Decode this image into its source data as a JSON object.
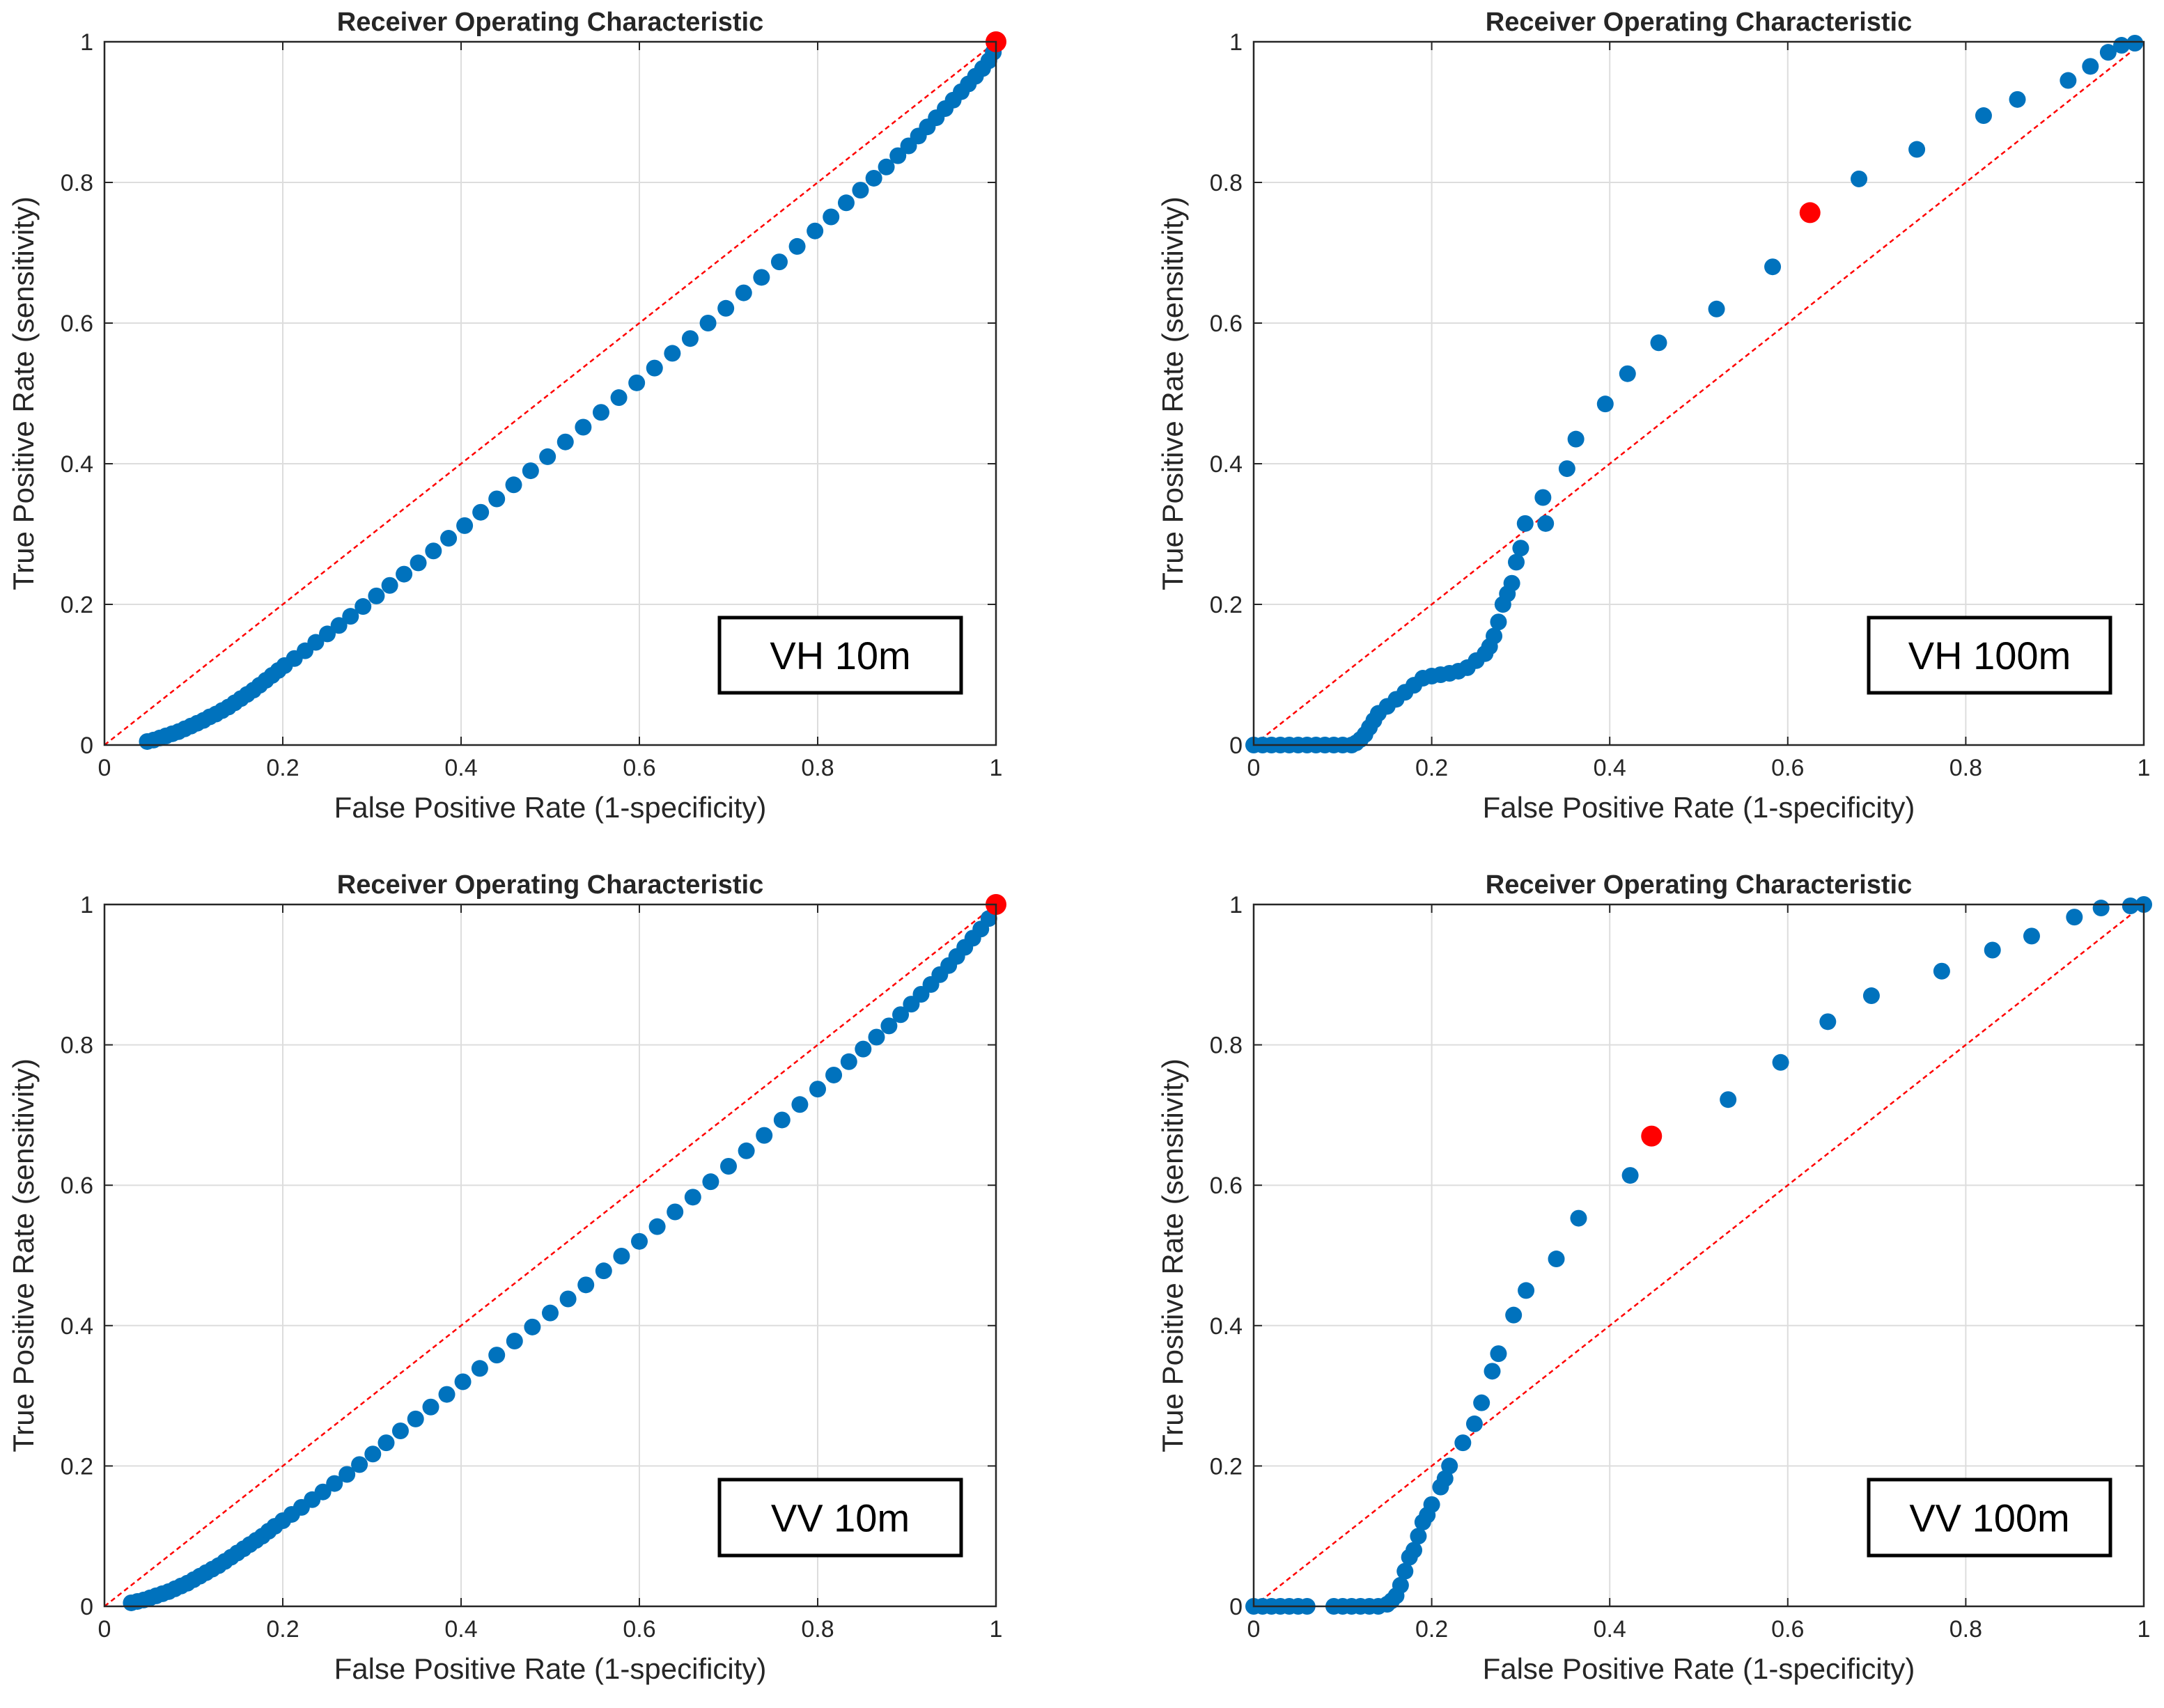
{
  "colors": {
    "points": "#0072BD",
    "optimal_point": "#FF0000",
    "reference_line": "#FF0000",
    "grid": "#DDDDDD",
    "axes": "#262626"
  },
  "chart_data": [
    {
      "id": "vh10",
      "type": "scatter",
      "title": "Receiver Operating Characteristic",
      "xlabel": "False Positive Rate (1-specificity)",
      "ylabel": "True Positive Rate (sensitivity)",
      "xlim": [
        0,
        1
      ],
      "ylim": [
        0,
        1
      ],
      "xticks": [
        "0",
        "0.2",
        "0.4",
        "0.6",
        "0.8",
        "1"
      ],
      "yticks": [
        "0",
        "0.2",
        "0.4",
        "0.6",
        "0.8",
        "1"
      ],
      "grid": true,
      "annotation": "VH 10m",
      "reference_line": {
        "from": [
          0,
          0
        ],
        "to": [
          1,
          1
        ],
        "style": "dashed"
      },
      "optimal_point": {
        "x": 1.0,
        "y": 1.0
      },
      "series": [
        {
          "name": "ROC points",
          "x": [
            0.048,
            0.055,
            0.062,
            0.069,
            0.076,
            0.083,
            0.09,
            0.097,
            0.104,
            0.111,
            0.118,
            0.125,
            0.132,
            0.139,
            0.146,
            0.153,
            0.16,
            0.167,
            0.174,
            0.181,
            0.188,
            0.195,
            0.202,
            0.213,
            0.225,
            0.237,
            0.25,
            0.263,
            0.276,
            0.29,
            0.305,
            0.32,
            0.336,
            0.352,
            0.369,
            0.386,
            0.404,
            0.422,
            0.44,
            0.459,
            0.478,
            0.497,
            0.517,
            0.537,
            0.557,
            0.577,
            0.597,
            0.617,
            0.637,
            0.657,
            0.677,
            0.697,
            0.717,
            0.737,
            0.757,
            0.777,
            0.797,
            0.815,
            0.832,
            0.848,
            0.863,
            0.877,
            0.89,
            0.902,
            0.913,
            0.923,
            0.933,
            0.943,
            0.952,
            0.961,
            0.969,
            0.977,
            0.985,
            0.992,
            0.997
          ],
          "y": [
            0.005,
            0.007,
            0.01,
            0.013,
            0.016,
            0.019,
            0.023,
            0.027,
            0.031,
            0.035,
            0.04,
            0.044,
            0.049,
            0.054,
            0.06,
            0.066,
            0.072,
            0.078,
            0.085,
            0.092,
            0.099,
            0.106,
            0.113,
            0.123,
            0.134,
            0.146,
            0.158,
            0.17,
            0.183,
            0.197,
            0.212,
            0.227,
            0.243,
            0.259,
            0.276,
            0.294,
            0.312,
            0.331,
            0.35,
            0.37,
            0.39,
            0.41,
            0.431,
            0.452,
            0.473,
            0.494,
            0.515,
            0.536,
            0.557,
            0.578,
            0.6,
            0.621,
            0.643,
            0.665,
            0.687,
            0.709,
            0.731,
            0.751,
            0.771,
            0.789,
            0.806,
            0.822,
            0.838,
            0.852,
            0.866,
            0.879,
            0.892,
            0.905,
            0.917,
            0.929,
            0.94,
            0.951,
            0.962,
            0.973,
            0.985
          ]
        }
      ]
    },
    {
      "id": "vh100",
      "type": "scatter",
      "title": "Receiver Operating Characteristic",
      "xlabel": "False Positive Rate (1-specificity)",
      "ylabel": "True Positive Rate (sensitivity)",
      "xlim": [
        0,
        1
      ],
      "ylim": [
        0,
        1
      ],
      "xticks": [
        "0",
        "0.2",
        "0.4",
        "0.6",
        "0.8",
        "1"
      ],
      "yticks": [
        "0",
        "0.2",
        "0.4",
        "0.6",
        "0.8",
        "1"
      ],
      "grid": true,
      "annotation": "VH 100m",
      "reference_line": {
        "from": [
          0,
          0
        ],
        "to": [
          1,
          1
        ],
        "style": "dashed"
      },
      "optimal_point": {
        "x": 0.625,
        "y": 0.757
      },
      "series": [
        {
          "name": "ROC points",
          "x": [
            0.0,
            0.01,
            0.02,
            0.03,
            0.04,
            0.05,
            0.06,
            0.07,
            0.08,
            0.09,
            0.1,
            0.11,
            0.115,
            0.12,
            0.125,
            0.13,
            0.135,
            0.14,
            0.15,
            0.16,
            0.17,
            0.18,
            0.19,
            0.2,
            0.21,
            0.22,
            0.23,
            0.24,
            0.25,
            0.26,
            0.265,
            0.27,
            0.275,
            0.28,
            0.285,
            0.29,
            0.295,
            0.3,
            0.305,
            0.325,
            0.328,
            0.352,
            0.362,
            0.395,
            0.42,
            0.455,
            0.52,
            0.583,
            0.68,
            0.745,
            0.82,
            0.858,
            0.915,
            0.94,
            0.96,
            0.975,
            0.99
          ],
          "y": [
            0.0,
            0.0,
            0.0,
            0.0,
            0.0,
            0.0,
            0.0,
            0.0,
            0.0,
            0.0,
            0.0,
            0.0,
            0.003,
            0.008,
            0.015,
            0.025,
            0.035,
            0.045,
            0.055,
            0.065,
            0.075,
            0.085,
            0.095,
            0.098,
            0.1,
            0.102,
            0.105,
            0.11,
            0.12,
            0.13,
            0.14,
            0.155,
            0.175,
            0.2,
            0.215,
            0.23,
            0.26,
            0.28,
            0.315,
            0.352,
            0.315,
            0.393,
            0.435,
            0.485,
            0.528,
            0.572,
            0.62,
            0.68,
            0.805,
            0.847,
            0.895,
            0.918,
            0.945,
            0.965,
            0.985,
            0.995,
            0.998
          ]
        }
      ]
    },
    {
      "id": "vv10",
      "type": "scatter",
      "title": "Receiver Operating Characteristic",
      "xlabel": "False Positive Rate (1-specificity)",
      "ylabel": "True Positive Rate (sensitivity)",
      "xlim": [
        0,
        1
      ],
      "ylim": [
        0,
        1
      ],
      "xticks": [
        "0",
        "0.2",
        "0.4",
        "0.6",
        "0.8",
        "1"
      ],
      "yticks": [
        "0",
        "0.2",
        "0.4",
        "0.6",
        "0.8",
        "1"
      ],
      "grid": true,
      "annotation": "VV 10m",
      "reference_line": {
        "from": [
          0,
          0
        ],
        "to": [
          1,
          1
        ],
        "style": "dashed"
      },
      "optimal_point": {
        "x": 1.0,
        "y": 1.0
      },
      "series": [
        {
          "name": "ROC points",
          "x": [
            0.03,
            0.037,
            0.044,
            0.051,
            0.058,
            0.065,
            0.072,
            0.079,
            0.086,
            0.093,
            0.1,
            0.107,
            0.114,
            0.121,
            0.128,
            0.135,
            0.142,
            0.149,
            0.156,
            0.163,
            0.17,
            0.177,
            0.184,
            0.191,
            0.2,
            0.21,
            0.221,
            0.233,
            0.245,
            0.258,
            0.272,
            0.286,
            0.301,
            0.316,
            0.332,
            0.349,
            0.366,
            0.384,
            0.402,
            0.421,
            0.44,
            0.46,
            0.48,
            0.5,
            0.52,
            0.54,
            0.56,
            0.58,
            0.6,
            0.62,
            0.64,
            0.66,
            0.68,
            0.7,
            0.72,
            0.74,
            0.76,
            0.78,
            0.8,
            0.818,
            0.835,
            0.851,
            0.866,
            0.88,
            0.893,
            0.905,
            0.916,
            0.927,
            0.937,
            0.947,
            0.956,
            0.965,
            0.974,
            0.983,
            0.992
          ],
          "y": [
            0.005,
            0.007,
            0.009,
            0.012,
            0.015,
            0.018,
            0.021,
            0.025,
            0.029,
            0.033,
            0.038,
            0.043,
            0.048,
            0.053,
            0.058,
            0.064,
            0.07,
            0.076,
            0.082,
            0.088,
            0.094,
            0.1,
            0.107,
            0.114,
            0.122,
            0.131,
            0.141,
            0.152,
            0.163,
            0.175,
            0.188,
            0.202,
            0.217,
            0.233,
            0.25,
            0.267,
            0.284,
            0.302,
            0.32,
            0.339,
            0.358,
            0.378,
            0.398,
            0.418,
            0.438,
            0.458,
            0.478,
            0.499,
            0.52,
            0.541,
            0.562,
            0.583,
            0.605,
            0.627,
            0.649,
            0.671,
            0.693,
            0.715,
            0.737,
            0.757,
            0.776,
            0.794,
            0.811,
            0.827,
            0.843,
            0.858,
            0.872,
            0.886,
            0.9,
            0.913,
            0.926,
            0.939,
            0.952,
            0.965,
            0.98
          ]
        }
      ]
    },
    {
      "id": "vv100",
      "type": "scatter",
      "title": "Receiver Operating Characteristic",
      "xlabel": "False Positive Rate (1-specificity)",
      "ylabel": "True Positive Rate (sensitivity)",
      "xlim": [
        0,
        1
      ],
      "ylim": [
        0,
        1
      ],
      "xticks": [
        "0",
        "0.2",
        "0.4",
        "0.6",
        "0.8",
        "1"
      ],
      "yticks": [
        "0",
        "0.2",
        "0.4",
        "0.6",
        "0.8",
        "1"
      ],
      "grid": true,
      "annotation": "VV 100m",
      "reference_line": {
        "from": [
          0,
          0
        ],
        "to": [
          1,
          1
        ],
        "style": "dashed"
      },
      "optimal_point": {
        "x": 0.447,
        "y": 0.67
      },
      "series": [
        {
          "name": "ROC points",
          "x": [
            0.0,
            0.01,
            0.02,
            0.03,
            0.04,
            0.05,
            0.06,
            0.09,
            0.1,
            0.11,
            0.12,
            0.13,
            0.14,
            0.15,
            0.155,
            0.16,
            0.165,
            0.17,
            0.175,
            0.18,
            0.185,
            0.19,
            0.195,
            0.2,
            0.21,
            0.215,
            0.22,
            0.235,
            0.248,
            0.256,
            0.268,
            0.275,
            0.292,
            0.306,
            0.34,
            0.365,
            0.423,
            0.533,
            0.592,
            0.645,
            0.694,
            0.773,
            0.83,
            0.874,
            0.922,
            0.952,
            0.985,
            1.0
          ],
          "y": [
            0.0,
            0.0,
            0.0,
            0.0,
            0.0,
            0.0,
            0.0,
            0.0,
            0.0,
            0.0,
            0.0,
            0.0,
            0.0,
            0.003,
            0.008,
            0.015,
            0.03,
            0.05,
            0.07,
            0.08,
            0.1,
            0.12,
            0.13,
            0.145,
            0.17,
            0.182,
            0.2,
            0.233,
            0.26,
            0.29,
            0.335,
            0.36,
            0.415,
            0.45,
            0.495,
            0.553,
            0.614,
            0.722,
            0.775,
            0.833,
            0.87,
            0.905,
            0.935,
            0.955,
            0.982,
            0.995,
            0.998,
            1.0
          ]
        }
      ]
    }
  ]
}
